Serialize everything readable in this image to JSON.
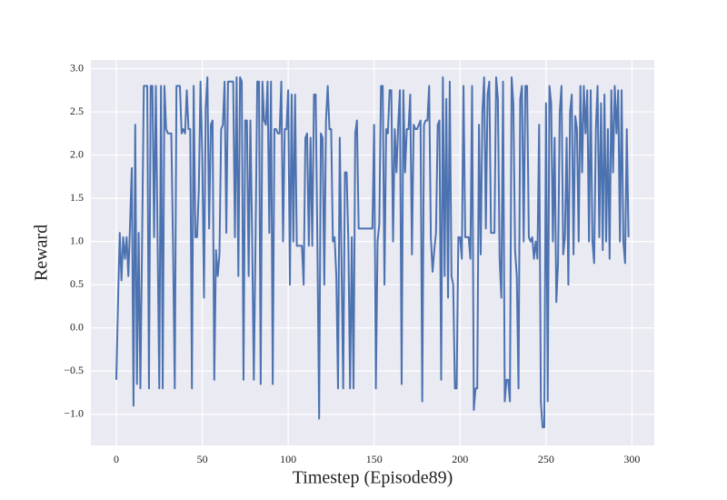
{
  "chart_data": {
    "type": "line",
    "xlabel": "Timestep (Episode89)",
    "ylabel": "Reward",
    "xlim": [
      -14.8,
      313
    ],
    "ylim": [
      -1.36,
      3.1
    ],
    "xticks": [
      0,
      50,
      100,
      150,
      200,
      250,
      300
    ],
    "yticks": [
      {
        "value": -1.0,
        "label": "−1.0"
      },
      {
        "value": -0.5,
        "label": "−0.5"
      },
      {
        "value": 0.0,
        "label": "0.0"
      },
      {
        "value": 0.5,
        "label": "0.5"
      },
      {
        "value": 1.0,
        "label": "1.0"
      },
      {
        "value": 1.5,
        "label": "1.5"
      },
      {
        "value": 2.0,
        "label": "2.0"
      },
      {
        "value": 2.5,
        "label": "2.5"
      },
      {
        "value": 3.0,
        "label": "3.0"
      }
    ],
    "grid": true,
    "x": [
      0,
      1,
      2,
      3,
      4,
      5,
      6,
      7,
      8,
      9,
      10,
      11,
      12,
      13,
      14,
      15,
      16,
      17,
      18,
      19,
      20,
      21,
      22,
      23,
      24,
      25,
      26,
      27,
      28,
      29,
      30,
      31,
      32,
      33,
      34,
      35,
      36,
      37,
      38,
      39,
      40,
      41,
      42,
      43,
      44,
      45,
      46,
      47,
      48,
      49,
      50,
      51,
      52,
      53,
      54,
      55,
      56,
      57,
      58,
      59,
      60,
      61,
      62,
      63,
      64,
      65,
      66,
      67,
      68,
      69,
      70,
      71,
      72,
      73,
      74,
      75,
      76,
      77,
      78,
      79,
      80,
      81,
      82,
      83,
      84,
      85,
      86,
      87,
      88,
      89,
      90,
      91,
      92,
      93,
      94,
      95,
      96,
      97,
      98,
      99,
      100,
      101,
      102,
      103,
      104,
      105,
      106,
      107,
      108,
      109,
      110,
      111,
      112,
      113,
      114,
      115,
      116,
      117,
      118,
      119,
      120,
      121,
      122,
      123,
      124,
      125,
      126,
      127,
      128,
      129,
      130,
      131,
      132,
      133,
      134,
      135,
      136,
      137,
      138,
      139,
      140,
      141,
      142,
      143,
      144,
      145,
      146,
      147,
      148,
      149,
      150,
      151,
      152,
      153,
      154,
      155,
      156,
      157,
      158,
      159,
      160,
      161,
      162,
      163,
      164,
      165,
      166,
      167,
      168,
      169,
      170,
      171,
      172,
      173,
      174,
      175,
      176,
      177,
      178,
      179,
      180,
      181,
      182,
      183,
      184,
      185,
      186,
      187,
      188,
      189,
      190,
      191,
      192,
      193,
      194,
      195,
      196,
      197,
      198,
      199,
      200,
      201,
      202,
      203,
      204,
      205,
      206,
      207,
      208,
      209,
      210,
      211,
      212,
      213,
      214,
      215,
      216,
      217,
      218,
      219,
      220,
      221,
      222,
      223,
      224,
      225,
      226,
      227,
      228,
      229,
      230,
      231,
      232,
      233,
      234,
      235,
      236,
      237,
      238,
      239,
      240,
      241,
      242,
      243,
      244,
      245,
      246,
      247,
      248,
      249,
      250,
      251,
      252,
      253,
      254,
      255,
      256,
      257,
      258,
      259,
      260,
      261,
      262,
      263,
      264,
      265,
      266,
      267,
      268,
      269,
      270,
      271,
      272,
      273,
      274,
      275,
      276,
      277,
      278,
      279,
      280,
      281,
      282,
      283,
      284,
      285,
      286,
      287,
      288,
      289,
      290,
      291,
      292,
      293,
      294,
      295,
      296,
      297,
      298
    ],
    "series": [
      {
        "color": "#4c72b0",
        "values": [
          -0.6,
          0.3,
          1.1,
          0.55,
          1.05,
          0.8,
          1.05,
          0.6,
          1.2,
          1.85,
          -0.9,
          2.35,
          -0.65,
          1.1,
          -0.7,
          1.0,
          2.8,
          2.8,
          2.8,
          -0.7,
          2.8,
          2.8,
          1.05,
          2.8,
          1.05,
          -0.7,
          2.8,
          -0.7,
          2.8,
          2.3,
          2.25,
          2.25,
          2.25,
          0.95,
          -0.7,
          2.8,
          2.8,
          2.8,
          2.25,
          2.3,
          2.25,
          2.75,
          2.3,
          2.3,
          -0.7,
          2.8,
          1.05,
          1.05,
          1.6,
          2.85,
          2.0,
          0.35,
          2.55,
          2.9,
          1.15,
          2.35,
          2.4,
          -0.6,
          0.9,
          0.6,
          0.85,
          2.3,
          2.35,
          2.85,
          1.1,
          2.85,
          2.85,
          2.85,
          2.85,
          1.05,
          2.9,
          0.6,
          2.9,
          2.85,
          -0.6,
          2.4,
          2.4,
          0.6,
          2.4,
          1.1,
          -0.6,
          1.0,
          2.85,
          2.85,
          -0.65,
          2.85,
          2.4,
          2.35,
          2.85,
          1.1,
          2.85,
          -0.65,
          2.3,
          2.3,
          2.25,
          2.25,
          2.85,
          1.0,
          2.3,
          2.3,
          2.75,
          0.5,
          2.7,
          1.0,
          2.7,
          0.95,
          0.95,
          0.95,
          0.95,
          0.5,
          2.2,
          2.25,
          0.95,
          2.2,
          0.95,
          2.7,
          2.7,
          0.95,
          -1.05,
          2.25,
          2.2,
          0.5,
          2.4,
          2.8,
          2.3,
          2.3,
          1.0,
          1.05,
          0.6,
          -0.7,
          2.2,
          0.8,
          -0.7,
          1.8,
          1.8,
          1.0,
          -0.7,
          1.05,
          -0.7,
          2.25,
          2.4,
          1.15,
          1.15,
          1.15,
          1.15,
          1.15,
          1.15,
          1.15,
          1.15,
          1.15,
          2.35,
          -0.7,
          1.0,
          1.2,
          2.8,
          2.8,
          0.5,
          2.3,
          2.25,
          2.75,
          2.75,
          1.0,
          2.3,
          1.8,
          2.35,
          2.75,
          -0.65,
          2.75,
          1.8,
          2.3,
          2.3,
          2.7,
          0.85,
          2.35,
          2.3,
          2.3,
          2.35,
          2.4,
          -0.85,
          2.35,
          2.4,
          2.4,
          2.8,
          1.05,
          0.65,
          0.9,
          1.1,
          2.35,
          2.4,
          -0.6,
          2.9,
          0.6,
          2.65,
          0.35,
          2.85,
          0.6,
          0.5,
          -0.7,
          -0.7,
          1.05,
          1.05,
          0.8,
          2.8,
          1.05,
          1.05,
          1.05,
          0.8,
          2.8,
          -0.95,
          -0.7,
          -0.7,
          2.35,
          0.85,
          2.5,
          2.9,
          1.15,
          2.7,
          2.85,
          1.1,
          1.1,
          1.1,
          2.9,
          2.65,
          0.8,
          0.35,
          2.85,
          -0.85,
          -0.6,
          -0.6,
          -0.85,
          2.9,
          2.6,
          0.9,
          0.6,
          -0.7,
          2.65,
          2.8,
          1.0,
          2.8,
          2.8,
          1.05,
          1.0,
          1.05,
          0.8,
          1.0,
          0.8,
          2.35,
          -0.85,
          -1.15,
          -1.15,
          2.6,
          -0.85,
          2.8,
          2.6,
          1.0,
          2.2,
          0.3,
          0.75,
          2.5,
          2.8,
          0.85,
          1.05,
          2.2,
          0.5,
          2.5,
          2.7,
          0.85,
          2.45,
          2.3,
          1.0,
          2.8,
          1.8,
          2.8,
          2.25,
          2.75,
          1.0,
          2.75,
          1.0,
          0.75,
          2.3,
          2.8,
          1.05,
          2.6,
          0.9,
          2.7,
          1.0,
          2.3,
          0.8,
          2.75,
          1.8,
          2.8,
          2.25,
          2.75,
          1.0,
          2.75,
          1.0,
          0.75,
          2.3,
          1.05
        ]
      }
    ]
  }
}
